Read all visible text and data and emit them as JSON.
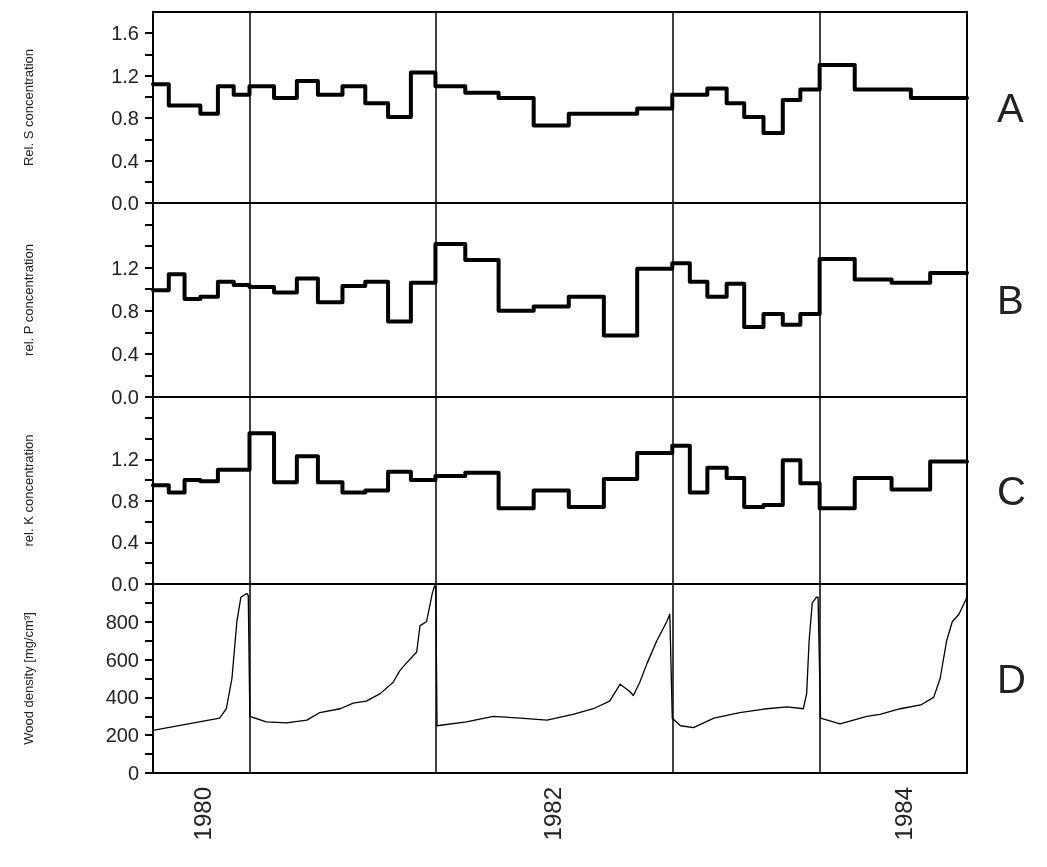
{
  "chart_data": [
    {
      "type": "step",
      "ylabel": "Rel. S concentration",
      "annotations": [
        "A"
      ],
      "tick_labels": "y",
      "xlim": [
        1979.72,
        1984.36
      ],
      "xticks": [
        1980,
        1982,
        1984
      ],
      "ylim": [
        0,
        1.8
      ],
      "yticks": [
        {
          "value": 0,
          "label": "0.0"
        },
        {
          "value": 0.2,
          "label": null
        },
        0.4,
        {
          "value": 0.6,
          "label": null
        },
        0.8,
        {
          "value": 1.0,
          "label": null
        },
        1.2,
        {
          "value": 1.4,
          "label": null
        },
        1.6
      ],
      "ref_lines": [
        {
          "axis": "x",
          "value": 1980.27,
          "color": "#000000"
        },
        {
          "axis": "x",
          "value": 1981.33,
          "color": "#000000"
        },
        {
          "axis": "x",
          "value": 1982.68,
          "color": "#000000"
        },
        {
          "axis": "x",
          "value": 1983.52,
          "color": "#000000"
        }
      ],
      "x": [
        1979.72,
        1979.81,
        1979.99,
        1980.09,
        1980.18,
        1980.27,
        1980.41,
        1980.54,
        1980.66,
        1980.8,
        1980.93,
        1981.06,
        1981.19,
        1981.33,
        1981.5,
        1981.69,
        1981.89,
        1982.09,
        1982.48,
        1982.68,
        1982.88,
        1982.99,
        1983.09,
        1983.2,
        1983.31,
        1983.41,
        1983.52,
        1983.72,
        1984.04,
        1984.36
      ],
      "series": [
        {
          "color": "#000000",
          "values": [
            1.12,
            0.92,
            0.84,
            1.1,
            1.02,
            1.1,
            0.99,
            1.15,
            1.02,
            1.1,
            0.94,
            0.81,
            1.23,
            1.1,
            1.04,
            0.99,
            0.73,
            0.84,
            0.89,
            1.02,
            1.08,
            0.94,
            0.81,
            0.66,
            0.97,
            1.07,
            1.3,
            1.07,
            0.99,
            0.99
          ]
        }
      ]
    },
    {
      "type": "step",
      "ylabel": "rel. P concentration",
      "annotations": [
        "B"
      ],
      "tick_labels": "y",
      "xlim": [
        1979.72,
        1984.36
      ],
      "xticks": [
        1980,
        1982,
        1984
      ],
      "ylim": [
        0,
        1.8
      ],
      "yticks": [
        {
          "value": 0,
          "label": "0.0"
        },
        {
          "value": 0.2,
          "label": null
        },
        0.4,
        {
          "value": 0.6,
          "label": null
        },
        0.8,
        {
          "value": 1.0,
          "label": null
        },
        1.2,
        {
          "value": 1.4,
          "label": null
        },
        {
          "value": 1.6,
          "label": null
        }
      ],
      "ref_lines": [
        {
          "axis": "x",
          "value": 1980.27,
          "color": "#000000"
        },
        {
          "axis": "x",
          "value": 1981.33,
          "color": "#000000"
        },
        {
          "axis": "x",
          "value": 1982.68,
          "color": "#000000"
        },
        {
          "axis": "x",
          "value": 1983.52,
          "color": "#000000"
        }
      ],
      "x": [
        1979.72,
        1979.81,
        1979.9,
        1979.99,
        1980.09,
        1980.18,
        1980.27,
        1980.41,
        1980.54,
        1980.66,
        1980.8,
        1980.93,
        1981.06,
        1981.19,
        1981.33,
        1981.5,
        1981.69,
        1981.89,
        1982.09,
        1982.29,
        1982.48,
        1982.68,
        1982.78,
        1982.88,
        1982.99,
        1983.09,
        1983.2,
        1983.31,
        1983.41,
        1983.52,
        1983.72,
        1983.93,
        1984.15,
        1984.36
      ],
      "series": [
        {
          "color": "#000000",
          "values": [
            0.99,
            1.14,
            0.91,
            0.93,
            1.07,
            1.04,
            1.02,
            0.97,
            1.1,
            0.88,
            1.03,
            1.07,
            0.7,
            1.06,
            1.42,
            1.27,
            0.8,
            0.84,
            0.93,
            0.57,
            1.19,
            1.24,
            1.07,
            0.93,
            1.05,
            0.65,
            0.77,
            0.67,
            0.77,
            1.28,
            1.09,
            1.06,
            1.15,
            1.15
          ]
        }
      ]
    },
    {
      "type": "step",
      "ylabel": "rel. K concentration",
      "annotations": [
        "C"
      ],
      "tick_labels": "y",
      "xlim": [
        1979.72,
        1984.36
      ],
      "xticks": [
        1980,
        1982,
        1984
      ],
      "ylim": [
        0,
        1.8
      ],
      "yticks": [
        {
          "value": 0,
          "label": "0.0"
        },
        {
          "value": 0.2,
          "label": null
        },
        0.4,
        {
          "value": 0.6,
          "label": null
        },
        0.8,
        {
          "value": 1.0,
          "label": null
        },
        1.2,
        {
          "value": 1.4,
          "label": null
        },
        {
          "value": 1.6,
          "label": null
        }
      ],
      "ref_lines": [
        {
          "axis": "x",
          "value": 1980.27,
          "color": "#000000"
        },
        {
          "axis": "x",
          "value": 1981.33,
          "color": "#000000"
        },
        {
          "axis": "x",
          "value": 1982.68,
          "color": "#000000"
        },
        {
          "axis": "x",
          "value": 1983.52,
          "color": "#000000"
        }
      ],
      "x": [
        1979.72,
        1979.81,
        1979.9,
        1979.99,
        1980.09,
        1980.27,
        1980.41,
        1980.54,
        1980.66,
        1980.8,
        1980.93,
        1981.06,
        1981.19,
        1981.33,
        1981.5,
        1981.69,
        1981.89,
        1982.09,
        1982.29,
        1982.48,
        1982.68,
        1982.78,
        1982.88,
        1982.99,
        1983.09,
        1983.2,
        1983.31,
        1983.41,
        1983.52,
        1983.72,
        1983.93,
        1984.15,
        1984.36
      ],
      "series": [
        {
          "color": "#000000",
          "values": [
            0.95,
            0.88,
            1.0,
            0.99,
            1.1,
            1.45,
            0.98,
            1.23,
            0.98,
            0.88,
            0.9,
            1.08,
            1.0,
            1.04,
            1.07,
            0.73,
            0.9,
            0.74,
            1.01,
            1.26,
            1.33,
            0.88,
            1.12,
            1.02,
            0.74,
            0.76,
            1.19,
            0.97,
            0.73,
            1.02,
            0.91,
            1.18,
            1.18
          ]
        }
      ]
    },
    {
      "type": "line",
      "ylabel": "Wood density [mg/cm³]",
      "annotations": [
        "D"
      ],
      "xlim": [
        1979.72,
        1984.36
      ],
      "xticks": [
        1980,
        1982,
        1984
      ],
      "ylim": [
        0,
        1000
      ],
      "yticks": [
        0,
        {
          "value": 100,
          "label": null
        },
        200,
        {
          "value": 300,
          "label": null
        },
        400,
        {
          "value": 500,
          "label": null
        },
        600,
        {
          "value": 700,
          "label": null
        },
        800,
        {
          "value": 900,
          "label": null
        }
      ],
      "ref_lines": [
        {
          "axis": "x",
          "value": 1980.27,
          "color": "#000000"
        },
        {
          "axis": "x",
          "value": 1981.33,
          "color": "#000000"
        },
        {
          "axis": "x",
          "value": 1982.68,
          "color": "#000000"
        },
        {
          "axis": "x",
          "value": 1983.52,
          "color": "#000000"
        }
      ],
      "x": [
        1979.72,
        1980.1,
        1980.138,
        1980.17,
        1980.198,
        1980.221,
        1980.254,
        1980.263,
        1980.272,
        1980.365,
        1980.481,
        1980.597,
        1980.671,
        1980.787,
        1980.861,
        1980.936,
        1981.015,
        1981.089,
        1981.126,
        1981.163,
        1981.223,
        1981.242,
        1981.279,
        1981.312,
        1981.325,
        1981.332,
        1981.339,
        1981.506,
        1981.66,
        1981.813,
        1981.966,
        1982.114,
        1982.23,
        1982.323,
        1982.383,
        1982.439,
        1982.458,
        1982.495,
        1982.536,
        1982.592,
        1982.648,
        1982.666,
        1982.68,
        1982.727,
        1982.801,
        1982.917,
        1983.065,
        1983.219,
        1983.335,
        1983.427,
        1983.446,
        1983.46,
        1983.478,
        1983.502,
        1983.511,
        1983.525,
        1983.636,
        1983.789,
        1983.864,
        1983.98,
        1984.096,
        1984.17,
        1984.207,
        1984.244,
        1984.276,
        1984.314,
        1984.36
      ],
      "series": [
        {
          "color": "#000000",
          "values": [
            225,
            290,
            340,
            500,
            800,
            930,
            950,
            940,
            300,
            270,
            265,
            280,
            320,
            340,
            370,
            380,
            420,
            480,
            540,
            580,
            640,
            780,
            800,
            950,
            990,
            980,
            250,
            270,
            300,
            290,
            280,
            310,
            340,
            380,
            470,
            430,
            410,
            480,
            580,
            700,
            800,
            840,
            290,
            250,
            240,
            290,
            320,
            340,
            350,
            340,
            420,
            700,
            900,
            930,
            930,
            290,
            260,
            300,
            310,
            340,
            360,
            400,
            500,
            700,
            800,
            840,
            930
          ]
        }
      ]
    }
  ]
}
